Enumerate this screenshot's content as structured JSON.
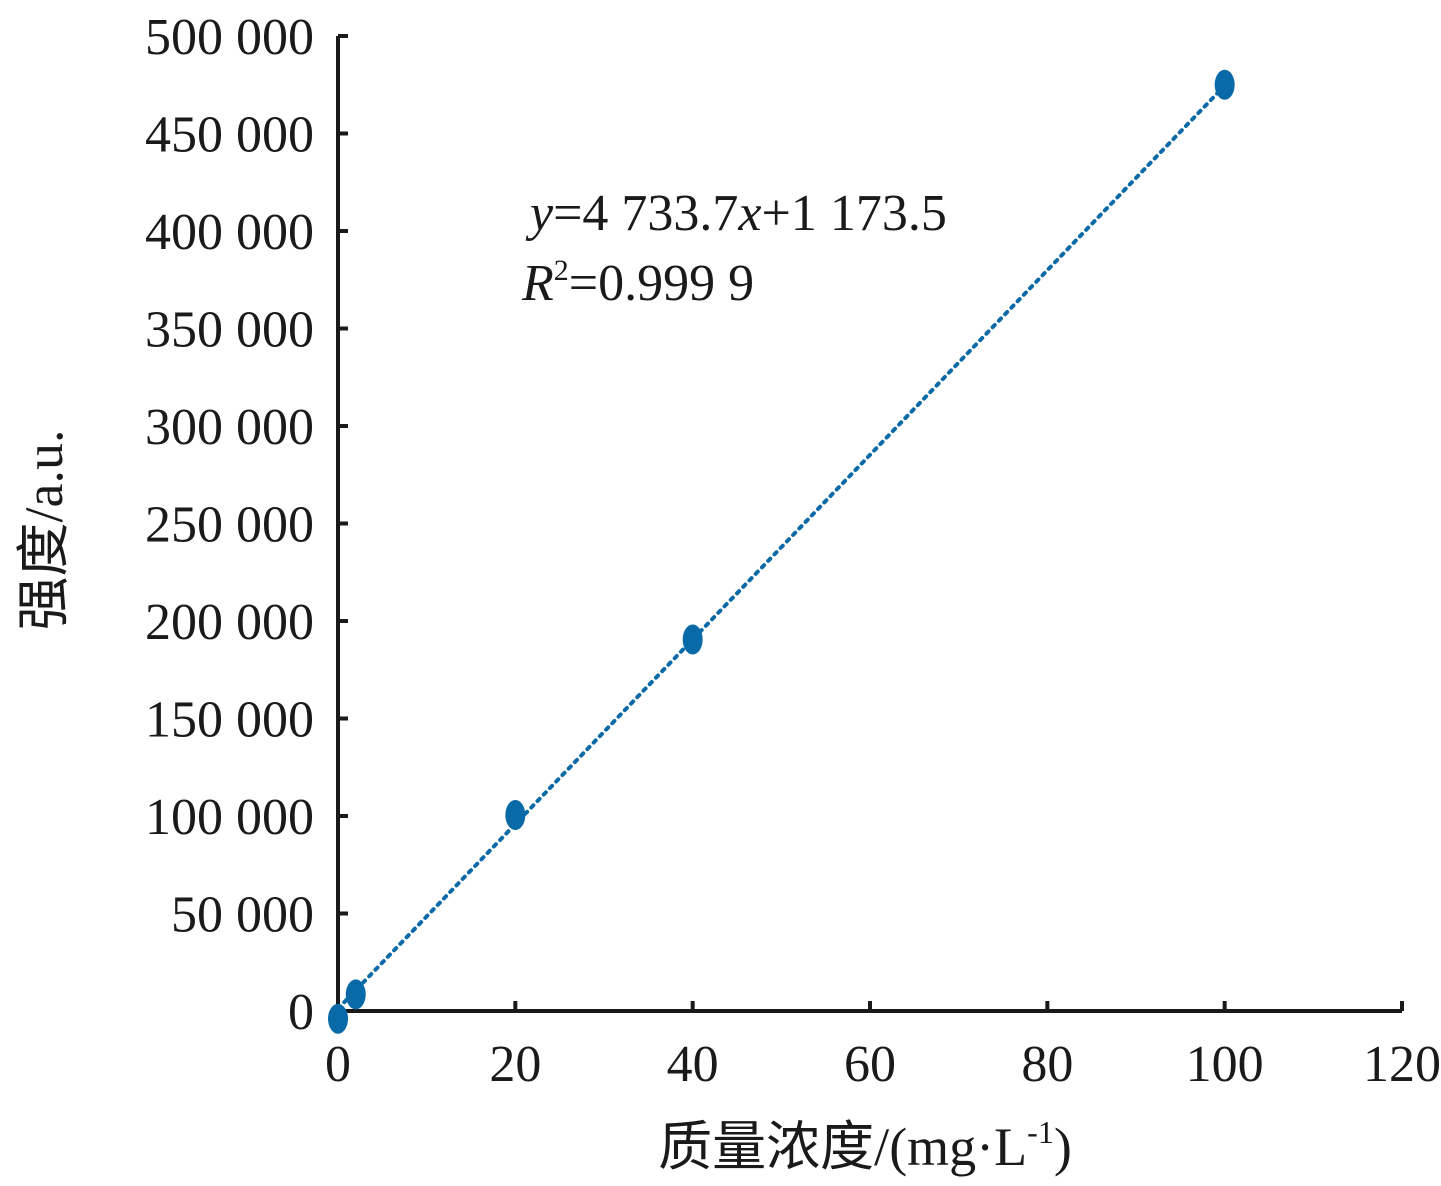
{
  "chart_data": {
    "type": "scatter",
    "xlabel": "质量浓度/(mg·L",
    "xlabel_sup": "-1",
    "xlabel_close": ")",
    "ylabel": "强度/a.u.",
    "xlim": [
      0,
      120
    ],
    "ylim": [
      0,
      500000
    ],
    "x_ticks": [
      0,
      20,
      40,
      60,
      80,
      100,
      120
    ],
    "x_tick_labels": [
      "0",
      "20",
      "40",
      "60",
      "80",
      "100",
      "120"
    ],
    "y_ticks": [
      0,
      50000,
      100000,
      150000,
      200000,
      250000,
      300000,
      350000,
      400000,
      450000,
      500000
    ],
    "y_tick_labels": [
      "0",
      "50 000",
      "100 000",
      "150 000",
      "200 000",
      "250 000",
      "300 000",
      "350 000",
      "400 000",
      "450 000",
      "500 000"
    ],
    "points": [
      {
        "x": 0,
        "y": -4000
      },
      {
        "x": 2,
        "y": 8500
      },
      {
        "x": 20,
        "y": 100500
      },
      {
        "x": 40,
        "y": 190500
      },
      {
        "x": 100,
        "y": 475000
      }
    ],
    "trendline": {
      "slope": 4733.7,
      "intercept": 1173.5,
      "x_range": [
        0,
        100
      ],
      "style": "dotted"
    },
    "annotation": {
      "eq_y": "y",
      "eq_mid": "=4 733.7",
      "eq_x": "x",
      "eq_rest": "+1 173.5",
      "r_R": "R",
      "r_sup": "2",
      "r_rest": "=0.999 9"
    },
    "grid": false,
    "legend": "none",
    "colors": {
      "marker": "#0a6aa8",
      "trendline": "#0a6aa8",
      "axis": "#1a1a1a"
    }
  }
}
